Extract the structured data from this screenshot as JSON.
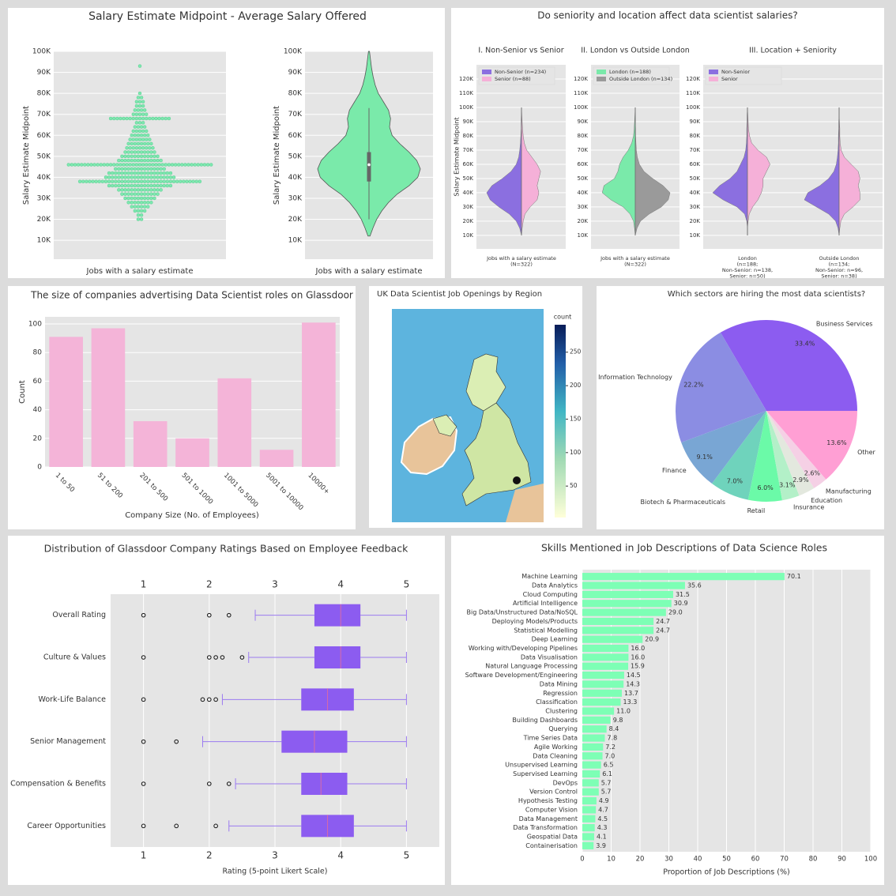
{
  "chart_data": [
    {
      "type": "swarm",
      "title": "Salary Estimate Midpoint - Average Salary Offered",
      "ylabel": "Salary Estimate Midpoint",
      "xlabel": "Jobs with a salary estimate",
      "levels": [
        20000,
        22000,
        24000,
        26000,
        28000,
        30000,
        32000,
        34000,
        36000,
        38000,
        40000,
        42000,
        44000,
        46000,
        48000,
        50000,
        52000,
        54000,
        56000,
        58000,
        60000,
        62000,
        64000,
        66000,
        68000,
        70000,
        72000,
        74000,
        76000,
        78000,
        80000,
        93000
      ],
      "counts": [
        2,
        2,
        4,
        6,
        8,
        10,
        12,
        14,
        20,
        38,
        22,
        20,
        16,
        45,
        14,
        12,
        10,
        9,
        8,
        7,
        6,
        5,
        4,
        3,
        19,
        5,
        4,
        3,
        3,
        2,
        1,
        1
      ],
      "color": "#7ee8b0",
      "ylim": [
        1000,
        100000
      ],
      "yticks": [
        {
          "value": 10000,
          "label": "10K"
        },
        {
          "value": 20000,
          "label": "20K"
        },
        {
          "value": 30000,
          "label": "30K"
        },
        {
          "value": 40000,
          "label": "40K"
        },
        {
          "value": 50000,
          "label": "50K"
        },
        {
          "value": 60000,
          "label": "60K"
        },
        {
          "value": 70000,
          "label": "70K"
        },
        {
          "value": 80000,
          "label": "80K"
        },
        {
          "value": 90000,
          "label": "90K"
        },
        {
          "value": 100000,
          "label": "100K"
        }
      ]
    },
    {
      "type": "violin",
      "ylabel": "Salary Estimate Midpoint",
      "xlabel": "Jobs with a salary estimate",
      "levels": [
        12000,
        16000,
        20000,
        24000,
        28000,
        32000,
        36000,
        40000,
        44000,
        48000,
        52000,
        56000,
        60000,
        64000,
        68000,
        72000,
        76000,
        80000,
        84000,
        88000,
        92000,
        96000,
        100000
      ],
      "density": [
        0.02,
        0.08,
        0.15,
        0.25,
        0.38,
        0.55,
        0.78,
        0.95,
        1.0,
        0.93,
        0.78,
        0.6,
        0.45,
        0.4,
        0.42,
        0.38,
        0.28,
        0.18,
        0.12,
        0.08,
        0.05,
        0.03,
        0.01
      ],
      "quartiles": [
        38000,
        46000,
        52000
      ],
      "whiskers": [
        20000,
        73000
      ],
      "color": "#7aeaaa",
      "ylim": [
        1000,
        100000
      ],
      "yticks": [
        {
          "value": 10000,
          "label": "10K"
        },
        {
          "value": 20000,
          "label": "20K"
        },
        {
          "value": 30000,
          "label": "30K"
        },
        {
          "value": 40000,
          "label": "40K"
        },
        {
          "value": 50000,
          "label": "50K"
        },
        {
          "value": 60000,
          "label": "60K"
        },
        {
          "value": 70000,
          "label": "70K"
        },
        {
          "value": 80000,
          "label": "80K"
        },
        {
          "value": 90000,
          "label": "90K"
        },
        {
          "value": 100000,
          "label": "100K"
        }
      ]
    },
    {
      "type": "split_violin",
      "title": "Do seniority and location affect data scientist salaries?",
      "ylabel": "Salary Estimate Midpoint",
      "levels": [
        10000,
        15000,
        20000,
        25000,
        30000,
        35000,
        40000,
        45000,
        50000,
        55000,
        60000,
        65000,
        70000,
        75000,
        80000,
        85000,
        90000,
        95000,
        100000
      ],
      "ylim": [
        500,
        130000
      ],
      "yticks": [
        {
          "value": 10000,
          "label": "10K"
        },
        {
          "value": 20000,
          "label": "20K"
        },
        {
          "value": 30000,
          "label": "30K"
        },
        {
          "value": 40000,
          "label": "40K"
        },
        {
          "value": 50000,
          "label": "50K"
        },
        {
          "value": 60000,
          "label": "60K"
        },
        {
          "value": 70000,
          "label": "70K"
        },
        {
          "value": 80000,
          "label": "80K"
        },
        {
          "value": 90000,
          "label": "90K"
        },
        {
          "value": 100000,
          "label": "100K"
        },
        {
          "value": 110000,
          "label": "110K"
        },
        {
          "value": 120000,
          "label": "120K"
        }
      ],
      "subplots": [
        {
          "title": "I. Non-Senior vs Senior",
          "series": [
            {
              "name": "Non-Senior (n=234)",
              "color": "#8b6fe0"
            },
            {
              "name": "Senior (n=88)",
              "color": "#f5b0d8"
            }
          ],
          "groups": [
            {
              "label": [
                "Jobs with a salary estimate",
                "(N=322)"
              ],
              "left": [
                0,
                0.05,
                0.15,
                0.35,
                0.65,
                0.9,
                1.0,
                0.85,
                0.55,
                0.3,
                0.15,
                0.08,
                0.05,
                0.03,
                0.02,
                0.01,
                0.01,
                0.005,
                0
              ],
              "right": [
                0,
                0.02,
                0.05,
                0.1,
                0.25,
                0.45,
                0.5,
                0.45,
                0.5,
                0.55,
                0.45,
                0.3,
                0.15,
                0.08,
                0.05,
                0.03,
                0.02,
                0.01,
                0
              ]
            }
          ]
        },
        {
          "title": "II. London vs Outside London",
          "series": [
            {
              "name": "London (n=188)",
              "color": "#7aeaaa"
            },
            {
              "name": "Outside London (n=134)",
              "color": "#9a9a9a"
            }
          ],
          "groups": [
            {
              "label": [
                "Jobs with a salary estimate",
                "(N=322)"
              ],
              "left": [
                0,
                0.02,
                0.05,
                0.15,
                0.35,
                0.7,
                0.95,
                0.9,
                0.6,
                0.5,
                0.45,
                0.35,
                0.2,
                0.1,
                0.05,
                0.03,
                0.02,
                0.01,
                0
              ],
              "right": [
                0,
                0.05,
                0.15,
                0.4,
                0.75,
                0.95,
                1.0,
                0.8,
                0.5,
                0.25,
                0.12,
                0.06,
                0.03,
                0.02,
                0.01,
                0.01,
                0,
                0,
                0
              ]
            }
          ]
        },
        {
          "title": "III. Location + Seniority",
          "series": [
            {
              "name": "Non-Senior",
              "color": "#8b6fe0"
            },
            {
              "name": "Senior",
              "color": "#f5b0d8"
            }
          ],
          "groups": [
            {
              "label": [
                "London",
                "(n=188;",
                "Non-Senior: n=138,",
                "Senior: n=50)"
              ],
              "left": [
                0,
                0,
                0.02,
                0.08,
                0.3,
                0.7,
                1.0,
                0.8,
                0.5,
                0.3,
                0.2,
                0.1,
                0.05,
                0.03,
                0.02,
                0.02,
                0.01,
                0.01,
                0
              ],
              "right": [
                0,
                0,
                0.02,
                0.05,
                0.15,
                0.3,
                0.4,
                0.45,
                0.45,
                0.55,
                0.65,
                0.55,
                0.3,
                0.12,
                0.06,
                0.03,
                0.02,
                0.01,
                0
              ]
            },
            {
              "label": [
                "Outside London",
                "(n=134;",
                "Non-Senior: n=96,",
                "Senior: n=38)"
              ],
              "left": [
                0,
                0.03,
                0.1,
                0.3,
                0.65,
                1.0,
                0.9,
                0.55,
                0.3,
                0.15,
                0.08,
                0.05,
                0.03,
                0.02,
                0.02,
                0.01,
                0.01,
                0,
                0
              ],
              "right": [
                0,
                0.02,
                0.05,
                0.15,
                0.4,
                0.6,
                0.6,
                0.55,
                0.6,
                0.55,
                0.35,
                0.15,
                0.06,
                0.03,
                0.02,
                0.02,
                0.01,
                0,
                0
              ]
            }
          ]
        }
      ]
    },
    {
      "type": "bar",
      "title": "The size of companies advertising Data Scientist roles on Glassdoor",
      "xlabel": "Company Size (No. of Employees)",
      "ylabel": "Count",
      "categories": [
        "1 to 50",
        "51 to 200",
        "201 to 500",
        "501 to 1000",
        "1001 to 5000",
        "5001 to 10000",
        "10000+"
      ],
      "values": [
        91,
        97,
        32,
        20,
        62,
        12,
        101
      ],
      "color": "#f4b4d8",
      "ylim": [
        0,
        105
      ],
      "yticks": [
        0,
        20,
        40,
        60,
        80,
        100
      ]
    },
    {
      "type": "map",
      "title": "UK Data Scientist Job Openings by Region",
      "colorbar_label": "count",
      "clim": [
        3,
        291
      ],
      "cticks": [
        50,
        100,
        150,
        200,
        250
      ]
    },
    {
      "type": "pie",
      "title": "Which sectors are hiring the most data scientists?",
      "labels": [
        "Business Services",
        "Information Technology",
        "Finance",
        "Biotech & Pharmaceuticals",
        "Retail",
        "Insurance",
        "Education",
        "Manufacturing",
        "Other"
      ],
      "values": [
        33.4,
        22.2,
        9.1,
        7.0,
        6.0,
        3.1,
        2.9,
        2.6,
        13.6
      ],
      "value_labels": [
        "33.4%",
        "22.2%",
        "9.1%",
        "7.0%",
        "6.0%",
        "3.1%",
        "2.9%",
        "2.6%",
        "13.6%"
      ],
      "colors": [
        "#8c5cf0",
        "#8b8de3",
        "#79a6d4",
        "#6fd3bc",
        "#6bfaa8",
        "#b3f0c8",
        "#e3e8de",
        "#f5d0e5",
        "#ff9fd4"
      ]
    },
    {
      "type": "box",
      "title": "Distribution of Glassdoor Company Ratings Based on Employee Feedback",
      "xlabel": "Rating (5-point Likert Scale)",
      "categories": [
        "Overall Rating",
        "Culture & Values",
        "Work-Life Balance",
        "Senior Management",
        "Compensation & Benefits",
        "Career Opportunities"
      ],
      "boxes": [
        {
          "whislo": 2.7,
          "q1": 3.6,
          "med": 4.0,
          "q3": 4.3,
          "whishi": 5,
          "fliers": [
            1,
            2,
            2.3
          ]
        },
        {
          "whislo": 2.6,
          "q1": 3.6,
          "med": 4.0,
          "q3": 4.3,
          "whishi": 5,
          "fliers": [
            1,
            2,
            2.1,
            2.2,
            2.5
          ]
        },
        {
          "whislo": 2.2,
          "q1": 3.4,
          "med": 3.8,
          "q3": 4.2,
          "whishi": 5,
          "fliers": [
            1,
            1.9,
            2.0,
            2.1
          ]
        },
        {
          "whislo": 1.9,
          "q1": 3.1,
          "med": 3.6,
          "q3": 4.1,
          "whishi": 5,
          "fliers": [
            1,
            1.5
          ]
        },
        {
          "whislo": 2.4,
          "q1": 3.4,
          "med": 3.7,
          "q3": 4.1,
          "whishi": 5,
          "fliers": [
            1,
            2,
            2.3
          ]
        },
        {
          "whislo": 2.3,
          "q1": 3.4,
          "med": 3.8,
          "q3": 4.2,
          "whishi": 5,
          "fliers": [
            1,
            1.5,
            2.1
          ]
        }
      ],
      "color": "#8c5cf0",
      "xlim": [
        0.5,
        5.5
      ],
      "xticks": [
        1,
        2,
        3,
        4,
        5
      ]
    },
    {
      "type": "hbar",
      "title": "Skills Mentioned in Job Descriptions of Data Science Roles",
      "xlabel": "Proportion of Job Descriptions (%)",
      "categories": [
        "Machine Learning",
        "Data Analytics",
        "Cloud Computing",
        "Artificial Intelligence",
        "Big Data/Unstructured Data/NoSQL",
        "Deploying Models/Products",
        "Statistical Modelling",
        "Deep Learning",
        "Working with/Developing Pipelines",
        "Data Visualisation",
        "Natural Language Processing",
        "Software Development/Engineering",
        "Data Mining",
        "Regression",
        "Classification",
        "Clustering",
        "Building Dashboards",
        "Querying",
        "Time Series Data",
        "Agile Working",
        "Data Cleaning",
        "Unsupervised Learning",
        "Supervised Learning",
        "DevOps",
        "Version Control",
        "Hypothesis Testing",
        "Computer Vision",
        "Data Management",
        "Data Transformation",
        "Geospatial Data",
        "Containerisation"
      ],
      "values": [
        70.1,
        35.6,
        31.5,
        30.9,
        29.0,
        24.7,
        24.7,
        20.9,
        16.0,
        16.0,
        15.9,
        14.5,
        14.3,
        13.7,
        13.3,
        11.0,
        9.8,
        8.4,
        7.8,
        7.2,
        7.0,
        6.5,
        6.1,
        5.7,
        5.7,
        4.9,
        4.7,
        4.5,
        4.3,
        4.1,
        3.9
      ],
      "value_labels": [
        "70.1",
        "35.6",
        "31.5",
        "30.9",
        "29.0",
        "24.7",
        "24.7",
        "20.9",
        "16.0",
        "16.0",
        "15.9",
        "14.5",
        "14.3",
        "13.7",
        "13.3",
        "11.0",
        "9.8",
        "8.4",
        "7.8",
        "7.2",
        "7.0",
        "6.5",
        "6.1",
        "5.7",
        "5.7",
        "4.9",
        "4.7",
        "4.5",
        "4.3",
        "4.1",
        "3.9"
      ],
      "color": "#7dffb5",
      "xlim": [
        0,
        100
      ],
      "xticks": [
        0,
        10,
        20,
        30,
        40,
        50,
        60,
        70,
        80,
        90,
        100
      ]
    }
  ]
}
